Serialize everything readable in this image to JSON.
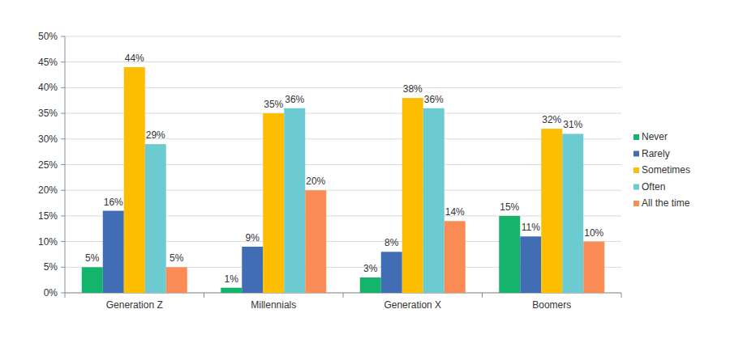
{
  "chart_data": {
    "type": "bar",
    "categories": [
      "Generation Z",
      "Millennials",
      "Generation X",
      "Boomers"
    ],
    "series": [
      {
        "name": "Never",
        "color": "#14b46c",
        "values": [
          5,
          1,
          3,
          15
        ],
        "value_labels": [
          "5%",
          "1%",
          "3%",
          "15%"
        ]
      },
      {
        "name": "Rarely",
        "color": "#416db5",
        "values": [
          16,
          9,
          8,
          11
        ],
        "value_labels": [
          "16%",
          "9%",
          "8%",
          "11%"
        ]
      },
      {
        "name": "Sometimes",
        "color": "#fdbd00",
        "values": [
          44,
          35,
          38,
          32
        ],
        "value_labels": [
          "44%",
          "35%",
          "38%",
          "32%"
        ]
      },
      {
        "name": "Often",
        "color": "#6ccbd0",
        "values": [
          29,
          36,
          36,
          31
        ],
        "value_labels": [
          "29%",
          "36%",
          "36%",
          "31%"
        ]
      },
      {
        "name": "All the time",
        "color": "#fb8c55",
        "values": [
          5,
          20,
          14,
          10
        ],
        "value_labels": [
          "5%",
          "20%",
          "14%",
          "10%"
        ]
      }
    ],
    "ylim": [
      0,
      50
    ],
    "yticks": [
      {
        "value": 0,
        "label": "0%"
      },
      {
        "value": 5,
        "label": "5%"
      },
      {
        "value": 10,
        "label": "10%"
      },
      {
        "value": 15,
        "label": "15%"
      },
      {
        "value": 20,
        "label": "20%"
      },
      {
        "value": 25,
        "label": "25%"
      },
      {
        "value": 30,
        "label": "30%"
      },
      {
        "value": 35,
        "label": "35%"
      },
      {
        "value": 40,
        "label": "40%"
      },
      {
        "value": 45,
        "label": "45%"
      },
      {
        "value": 50,
        "label": "50%"
      }
    ],
    "grid": true,
    "legend": "right",
    "data_labels": true
  }
}
